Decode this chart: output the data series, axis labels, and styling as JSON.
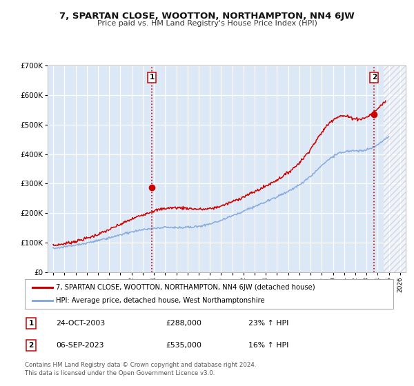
{
  "title": "7, SPARTAN CLOSE, WOOTTON, NORTHAMPTON, NN4 6JW",
  "subtitle": "Price paid vs. HM Land Registry's House Price Index (HPI)",
  "xlim": [
    1994.5,
    2026.5
  ],
  "ylim": [
    0,
    700000
  ],
  "yticks": [
    0,
    100000,
    200000,
    300000,
    400000,
    500000,
    600000,
    700000
  ],
  "ytick_labels": [
    "£0",
    "£100K",
    "£200K",
    "£300K",
    "£400K",
    "£500K",
    "£600K",
    "£700K"
  ],
  "xticks": [
    1995,
    1996,
    1997,
    1998,
    1999,
    2000,
    2001,
    2002,
    2003,
    2004,
    2005,
    2006,
    2007,
    2008,
    2009,
    2010,
    2011,
    2012,
    2013,
    2014,
    2015,
    2016,
    2017,
    2018,
    2019,
    2020,
    2021,
    2022,
    2023,
    2024,
    2025,
    2026
  ],
  "line1_color": "#cc0000",
  "line2_color": "#88aadd",
  "vline1_x": 2003.82,
  "vline2_x": 2023.68,
  "vline_color": "#cc0000",
  "marker1_x": 2003.82,
  "marker1_y": 288000,
  "marker2_x": 2023.68,
  "marker2_y": 535000,
  "marker_color": "#cc0000",
  "legend_line1": "7, SPARTAN CLOSE, WOOTTON, NORTHAMPTON, NN4 6JW (detached house)",
  "legend_line2": "HPI: Average price, detached house, West Northamptonshire",
  "table_row1": [
    "1",
    "24-OCT-2003",
    "£288,000",
    "23% ↑ HPI"
  ],
  "table_row2": [
    "2",
    "06-SEP-2023",
    "£535,000",
    "16% ↑ HPI"
  ],
  "footnote": "Contains HM Land Registry data © Crown copyright and database right 2024.\nThis data is licensed under the Open Government Licence v3.0.",
  "bg_color": "#ffffff",
  "plot_bg_color": "#dce8f5",
  "grid_color": "#ffffff",
  "hatch_start": 2024.5
}
